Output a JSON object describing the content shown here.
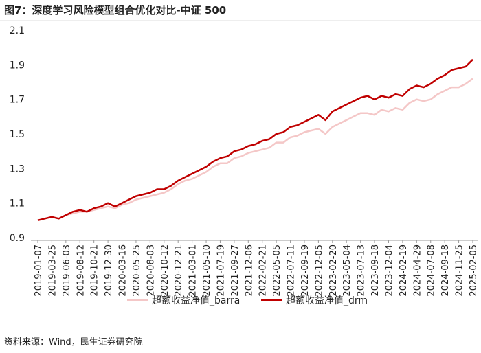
{
  "chart_data": {
    "type": "line",
    "title": "图7：深度学习风险模型组合优化对比-中证 500",
    "source": "资料来源：Wind，民生证券研究院",
    "categories": [
      "2019-01-07",
      null,
      "2019-03-25",
      null,
      "2019-06-03",
      null,
      "2019-08-12",
      null,
      "2019-10-21",
      null,
      "2019-12-30",
      null,
      "2020-03-16",
      null,
      "2020-05-25",
      null,
      "2020-08-03",
      null,
      "2020-10-12",
      null,
      "2020-12-21",
      null,
      "2021-03-01",
      null,
      "2021-05-10",
      null,
      "2021-07-19",
      null,
      "2021-09-27",
      null,
      "2021-12-06",
      null,
      "2022-02-21",
      null,
      "2022-05-05",
      null,
      "2022-07-11",
      null,
      "2022-09-19",
      null,
      "2022-12-05",
      null,
      "2023-02-20",
      null,
      "2023-05-04",
      null,
      "2023-07-13",
      null,
      "2023-09-18",
      null,
      "2023-12-04",
      null,
      "2024-02-19",
      null,
      "2024-04-29",
      null,
      "2024-07-08",
      null,
      "2024-09-18",
      null,
      "2024-11-25",
      null,
      "2025-02-05"
    ],
    "series": [
      {
        "name": "超额收益净值_barra",
        "color": "#f4c7c7",
        "values": [
          1.0,
          1.01,
          1.02,
          1.01,
          1.03,
          1.04,
          1.05,
          1.05,
          1.06,
          1.07,
          1.08,
          1.07,
          1.09,
          1.1,
          1.12,
          1.13,
          1.14,
          1.15,
          1.16,
          1.18,
          1.21,
          1.23,
          1.24,
          1.26,
          1.28,
          1.31,
          1.33,
          1.33,
          1.36,
          1.37,
          1.39,
          1.4,
          1.41,
          1.42,
          1.45,
          1.45,
          1.48,
          1.49,
          1.51,
          1.52,
          1.53,
          1.5,
          1.54,
          1.56,
          1.58,
          1.6,
          1.62,
          1.62,
          1.61,
          1.64,
          1.63,
          1.65,
          1.64,
          1.68,
          1.7,
          1.69,
          1.7,
          1.73,
          1.75,
          1.77,
          1.77,
          1.79,
          1.82
        ]
      },
      {
        "name": "超额收益净值_drm",
        "color": "#c00000",
        "values": [
          1.0,
          1.01,
          1.02,
          1.01,
          1.03,
          1.05,
          1.06,
          1.05,
          1.07,
          1.08,
          1.1,
          1.08,
          1.1,
          1.12,
          1.14,
          1.15,
          1.16,
          1.18,
          1.18,
          1.2,
          1.23,
          1.25,
          1.27,
          1.29,
          1.31,
          1.34,
          1.36,
          1.37,
          1.4,
          1.41,
          1.43,
          1.44,
          1.46,
          1.47,
          1.5,
          1.51,
          1.54,
          1.55,
          1.57,
          1.59,
          1.61,
          1.58,
          1.63,
          1.65,
          1.67,
          1.69,
          1.71,
          1.72,
          1.7,
          1.72,
          1.71,
          1.73,
          1.72,
          1.76,
          1.78,
          1.77,
          1.79,
          1.82,
          1.84,
          1.87,
          1.88,
          1.89,
          1.93
        ]
      }
    ],
    "ylim": [
      0.9,
      2.1
    ],
    "yticks": [
      0.9,
      1.1,
      1.3,
      1.5,
      1.7,
      1.9,
      2.1
    ],
    "grid": false,
    "legend": "bottom"
  }
}
